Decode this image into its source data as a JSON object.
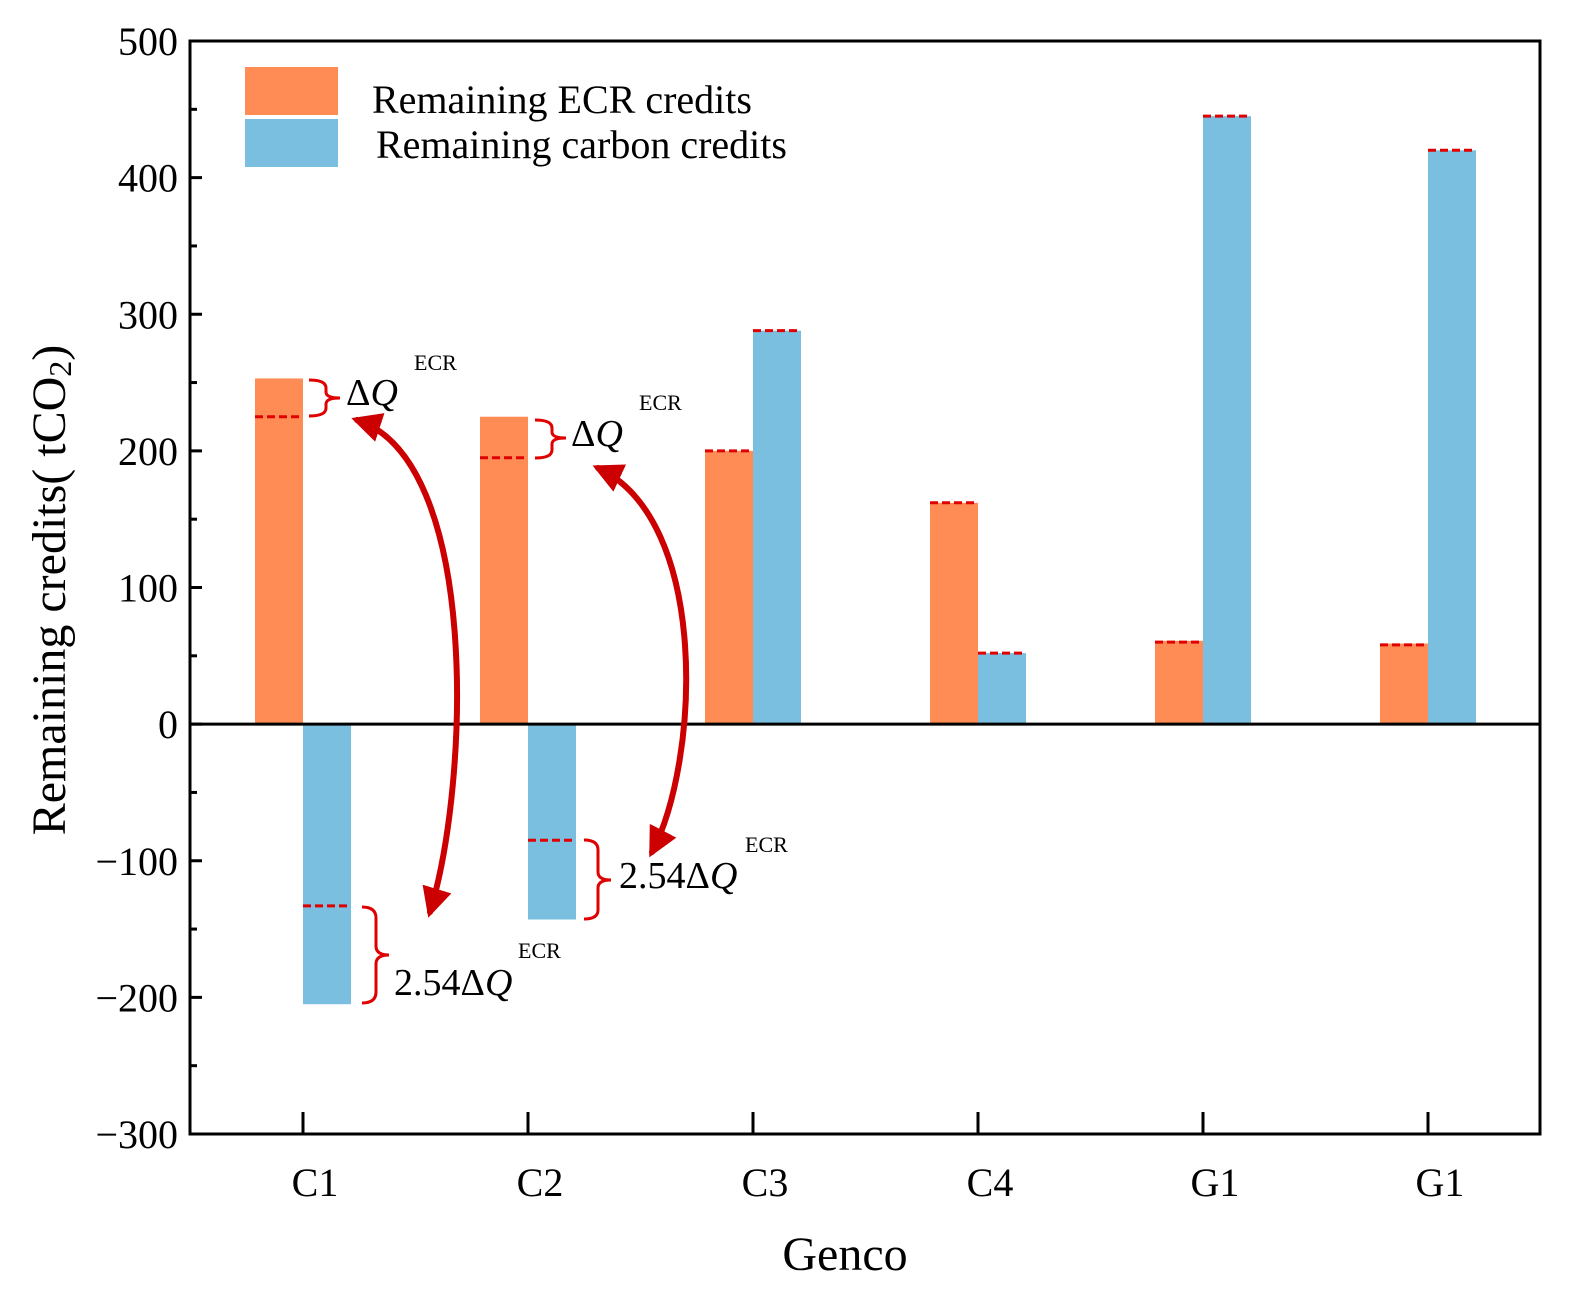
{
  "chart_data": {
    "type": "bar",
    "title": "",
    "xlabel": "Genco",
    "ylabel_parts": [
      "Remaining credits( tCO",
      "2",
      ")"
    ],
    "ylim": [
      -300,
      500
    ],
    "yticks": [
      -300,
      -200,
      -100,
      0,
      100,
      200,
      300,
      400,
      500
    ],
    "ytick_labels": [
      "−300",
      "−200",
      "−100",
      "0",
      "100",
      "200",
      "300",
      "400",
      "500"
    ],
    "categories": [
      "C1",
      "C2",
      "C3",
      "C4",
      "G1",
      "G1"
    ],
    "series": [
      {
        "name": "Remaining ECR credits",
        "color": "#FF8C55",
        "values": [
          253,
          225,
          200,
          162,
          61,
          59
        ]
      },
      {
        "name": "Remaining carbon credits",
        "color": "#7BBFE0",
        "values": [
          -205,
          -143,
          288,
          52,
          445,
          420
        ]
      }
    ],
    "reference_lines": {
      "color": "#E00000",
      "ecr": [
        225,
        195,
        200,
        162,
        60,
        58
      ],
      "carbon": [
        -133,
        -85,
        288,
        52,
        445,
        420
      ]
    },
    "annotations": [
      {
        "id": "c1-ecr",
        "prefix": "",
        "base": "Δ",
        "var": "Q",
        "sup": "ECR"
      },
      {
        "id": "c2-ecr",
        "prefix": "",
        "base": "Δ",
        "var": "Q",
        "sup": "ECR"
      },
      {
        "id": "c1-carbon",
        "prefix": "2.54",
        "base": "Δ",
        "var": "Q",
        "sup": "ECR"
      },
      {
        "id": "c2-carbon",
        "prefix": "2.54",
        "base": "Δ",
        "var": "Q",
        "sup": "ECR"
      }
    ],
    "arrow_color": "#CC0000",
    "legend_position": "top-left",
    "grid": false
  }
}
